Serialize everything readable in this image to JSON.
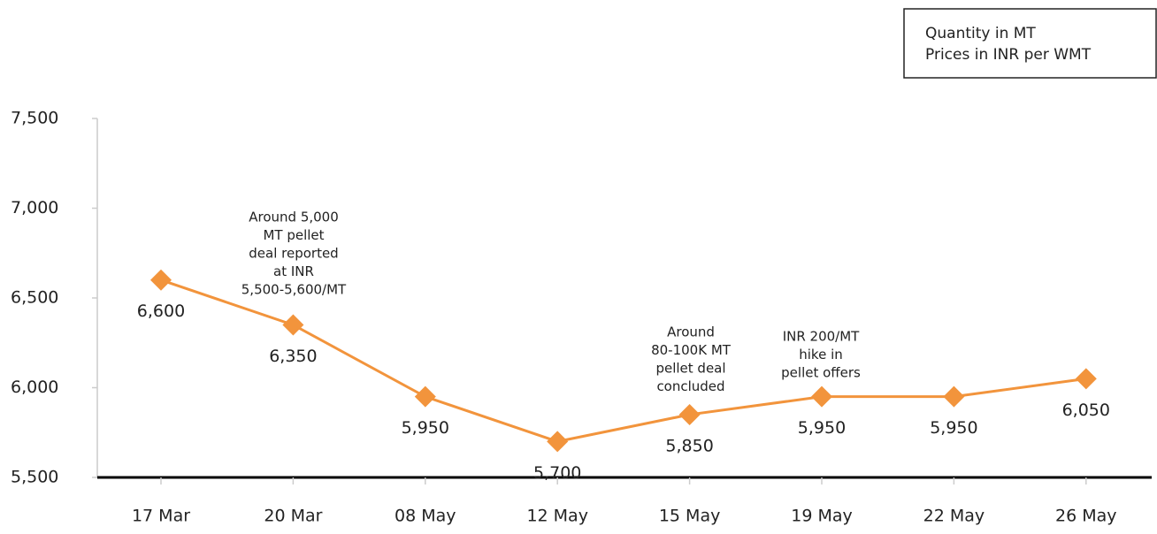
{
  "chart_data": {
    "type": "line",
    "note": [
      "Quantity in MT",
      "Prices in INR per WMT"
    ],
    "categories": [
      "17 Mar",
      "20 Mar",
      "08 May",
      "12 May",
      "15 May",
      "19 May",
      "22 May",
      "26 May"
    ],
    "series": [
      {
        "color": "#f2943c",
        "values": [
          6600,
          6350,
          5950,
          5700,
          5850,
          5950,
          5950,
          6050
        ],
        "value_labels": [
          "6,600",
          "6,350",
          "5,950",
          "5,700",
          "5,850",
          "5,950",
          "5,950",
          "6,050"
        ]
      }
    ],
    "ylim": [
      5500,
      7500
    ],
    "yticks": [
      {
        "value": 5500,
        "label": "5,500"
      },
      {
        "value": 6000,
        "label": "6,000"
      },
      {
        "value": 6500,
        "label": "6,500"
      },
      {
        "value": 7000,
        "label": "7,000"
      },
      {
        "value": 7500,
        "label": "7,500"
      }
    ],
    "annotations": [
      [
        "Around 5,000",
        "MT pellet",
        "deal reported",
        "at INR",
        "5,500-5,600/MT"
      ],
      [
        "Around",
        "80-100K MT",
        "pellet deal",
        "concluded"
      ],
      [
        "INR 200/MT",
        "hike in",
        "pellet offers"
      ]
    ]
  }
}
